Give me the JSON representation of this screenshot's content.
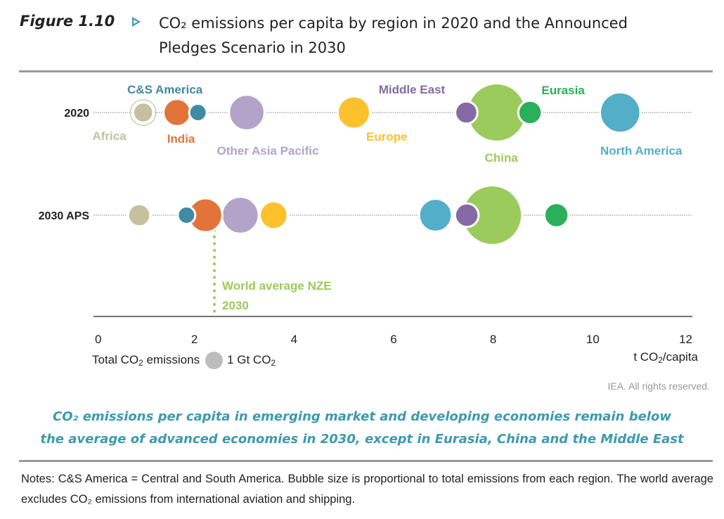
{
  "figure": {
    "label": "Figure 1.10",
    "title_line1": "CO₂ emissions per capita by region in 2020 and the Announced",
    "title_line2": "Pledges Scenario in 2030"
  },
  "chart_data": {
    "type": "scatter",
    "subtype": "bubble",
    "title": "CO₂ emissions per capita by region in 2020 and the Announced Pledges Scenario in 2030",
    "xlabel": "t CO2/capita",
    "ylabel": "",
    "xlim": [
      0,
      12
    ],
    "xticks": [
      0,
      2,
      4,
      6,
      8,
      10,
      12
    ],
    "grid": false,
    "rows": [
      "2020",
      "2030 APS"
    ],
    "bubble_size_legend": {
      "label": "Total CO2 emissions",
      "reference": "1 Gt CO2",
      "reference_value_gt": 1
    },
    "series": [
      {
        "name": "Africa",
        "color": "#c5c09d",
        "values": [
          {
            "row": "2020",
            "x": 0.97,
            "gt": 1.3
          },
          {
            "row": "2030 APS",
            "x": 0.89,
            "gt": 1.6
          }
        ]
      },
      {
        "name": "India",
        "color": "#e2743a",
        "values": [
          {
            "row": "2020",
            "x": 1.65,
            "gt": 2.4
          },
          {
            "row": "2030 APS",
            "x": 2.22,
            "gt": 3.7
          }
        ]
      },
      {
        "name": "C&S America",
        "color": "#3f8ba3",
        "values": [
          {
            "row": "2020",
            "x": 2.07,
            "gt": 1.0
          },
          {
            "row": "2030 APS",
            "x": 1.84,
            "gt": 1.0
          }
        ]
      },
      {
        "name": "Other Asia Pacific",
        "color": "#b3a3c9",
        "values": [
          {
            "row": "2020",
            "x": 3.05,
            "gt": 4.1
          },
          {
            "row": "2030 APS",
            "x": 2.92,
            "gt": 4.4
          }
        ]
      },
      {
        "name": "Europe",
        "color": "#fdc12e",
        "values": [
          {
            "row": "2020",
            "x": 5.2,
            "gt": 3.4
          },
          {
            "row": "2030 APS",
            "x": 3.59,
            "gt": 2.5
          }
        ]
      },
      {
        "name": "Middle East",
        "color": "#866aa6",
        "values": [
          {
            "row": "2020",
            "x": 7.46,
            "gt": 1.6
          },
          {
            "row": "2030 APS",
            "x": 7.47,
            "gt": 1.8
          }
        ]
      },
      {
        "name": "China",
        "color": "#9bcb5c",
        "values": [
          {
            "row": "2020",
            "x": 8.07,
            "gt": 11.0
          },
          {
            "row": "2030 APS",
            "x": 7.98,
            "gt": 11.5
          }
        ]
      },
      {
        "name": "Eurasia",
        "color": "#2baf5a",
        "values": [
          {
            "row": "2020",
            "x": 8.74,
            "gt": 1.8
          },
          {
            "row": "2030 APS",
            "x": 9.27,
            "gt": 1.9
          }
        ]
      },
      {
        "name": "North America",
        "color": "#53aec8",
        "values": [
          {
            "row": "2020",
            "x": 10.55,
            "gt": 5.3
          },
          {
            "row": "2030 APS",
            "x": 6.84,
            "gt": 3.5
          }
        ]
      }
    ],
    "reference_line": {
      "label_line1": "World average NZE",
      "label_line2": "2030",
      "x": 2.4,
      "color": "#9bcb5c"
    },
    "annotations_2020": [
      "C&S America",
      "Africa",
      "India",
      "Other Asia Pacific",
      "Middle East",
      "Europe",
      "China",
      "Eurasia",
      "North America"
    ]
  },
  "legend": {
    "label_prefix": "Total CO",
    "label_sub": "2",
    "label_suffix": " emissions",
    "ref_prefix": "1 Gt CO",
    "ref_sub": "2"
  },
  "unit": {
    "prefix": "t CO",
    "sub": "2",
    "suffix": "/capita"
  },
  "rights": "IEA. All rights reserved.",
  "takeaway": {
    "line1": "CO₂ emissions per capita in emerging market and developing economies remain below",
    "line2": "the average of advanced economies in 2030, except in Eurasia, China and the Middle East"
  },
  "notes": "Notes: C&S America = Central and South America. Bubble size is proportional to total emissions from each region. The world average excludes CO₂ emissions from international aviation and shipping."
}
